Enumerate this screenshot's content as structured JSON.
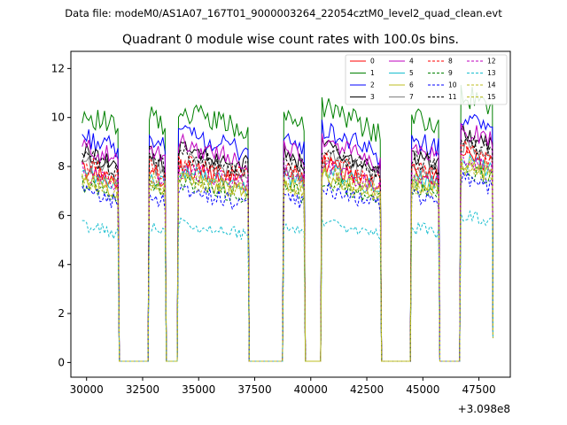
{
  "header": {
    "data_file": "Data file: modeM0/AS1A07_167T01_9000003264_22054cztM0_level2_quad_clean.evt"
  },
  "chart_data": {
    "type": "line",
    "title": "Quadrant 0 module wise count rates with 100.0s bins.",
    "xlabel": "",
    "ylabel": "",
    "x_offset_label": "+3.098e8",
    "xlim": [
      29300,
      48900
    ],
    "ylim": [
      -0.6,
      12.7
    ],
    "x_ticks": [
      30000,
      32500,
      35000,
      37500,
      40000,
      42500,
      45000,
      47500
    ],
    "x_tick_labels": [
      "30000",
      "32500",
      "35000",
      "37500",
      "40000",
      "42500",
      "45000",
      "47500"
    ],
    "y_ticks": [
      0,
      2,
      4,
      6,
      8,
      10,
      12
    ],
    "y_tick_labels": [
      "0",
      "2",
      "4",
      "6",
      "8",
      "10",
      "12"
    ],
    "legend_position": "top-right",
    "on_segments": [
      [
        29800,
        31400
      ],
      [
        32800,
        33500
      ],
      [
        34100,
        37200
      ],
      [
        38800,
        39700
      ],
      [
        40500,
        43100
      ],
      [
        44500,
        45700
      ],
      [
        46700,
        48100
      ]
    ],
    "off_level": 0.05,
    "series": [
      {
        "name": "0",
        "color": "#ff0000",
        "dash": false,
        "mean": 7.6
      },
      {
        "name": "1",
        "color": "#008000",
        "dash": false,
        "mean": 9.8
      },
      {
        "name": "2",
        "color": "#0000ff",
        "dash": false,
        "mean": 8.9
      },
      {
        "name": "3",
        "color": "#000000",
        "dash": false,
        "mean": 8.3
      },
      {
        "name": "4",
        "color": "#bf00bf",
        "dash": false,
        "mean": 8.5
      },
      {
        "name": "5",
        "color": "#17becf",
        "dash": false,
        "mean": 7.4
      },
      {
        "name": "6",
        "color": "#bcbd22",
        "dash": false,
        "mean": 7.2
      },
      {
        "name": "7",
        "color": "#808080",
        "dash": false,
        "mean": 7.9
      },
      {
        "name": "8",
        "color": "#ff0000",
        "dash": true,
        "mean": 7.8
      },
      {
        "name": "9",
        "color": "#008000",
        "dash": true,
        "mean": 7.0
      },
      {
        "name": "10",
        "color": "#0000ff",
        "dash": true,
        "mean": 6.7
      },
      {
        "name": "11",
        "color": "#000000",
        "dash": true,
        "mean": 8.1
      },
      {
        "name": "12",
        "color": "#bf00bf",
        "dash": true,
        "mean": 7.5
      },
      {
        "name": "13",
        "color": "#17becf",
        "dash": true,
        "mean": 5.4
      },
      {
        "name": "14",
        "color": "#bcbd22",
        "dash": true,
        "mean": 7.3
      },
      {
        "name": "15",
        "color": "#bcbd22",
        "dash": true,
        "mean": 7.1
      }
    ]
  }
}
